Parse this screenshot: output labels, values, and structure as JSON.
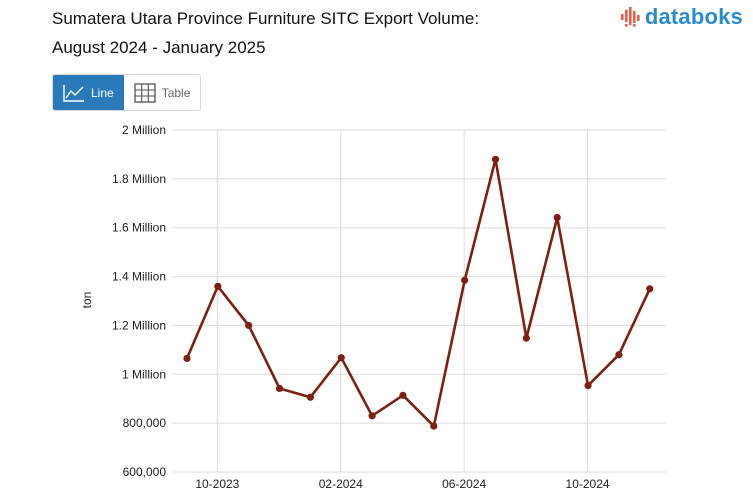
{
  "header": {
    "title_line1": "Sumatera Utara Province Furniture SITC Export Volume:",
    "title_line2": "August 2024 - January 2025"
  },
  "logo": {
    "text": "databoks",
    "icon": "databoks-logo-icon",
    "color": "#2a8bd1",
    "accent": "#e8604c"
  },
  "toggle": {
    "line_label": "Line",
    "table_label": "Table",
    "selected": "Line",
    "line_icon": "line-chart-icon",
    "table_icon": "table-grid-icon"
  },
  "chart_data": {
    "type": "line",
    "ylabel": "ton",
    "ylim": [
      600000,
      2000000
    ],
    "y_ticks": [
      {
        "value": 600000,
        "label": "600,000"
      },
      {
        "value": 800000,
        "label": "800,000"
      },
      {
        "value": 1000000,
        "label": "1 Million"
      },
      {
        "value": 1200000,
        "label": "1.2 Million"
      },
      {
        "value": 1400000,
        "label": "1.4 Million"
      },
      {
        "value": 1600000,
        "label": "1.6 Million"
      },
      {
        "value": 1800000,
        "label": "1.8 Million"
      },
      {
        "value": 2000000,
        "label": "2 Million"
      }
    ],
    "x_ticks": [
      "10-2023",
      "02-2024",
      "06-2024",
      "10-2024"
    ],
    "x_tick_months": [
      "2023-10",
      "2024-02",
      "2024-06",
      "2024-10"
    ],
    "grid": true,
    "line_color": "#7b2113",
    "series": [
      {
        "x": [
          "2023-09",
          "2023-10",
          "2023-11",
          "2023-12",
          "2024-01",
          "2024-02",
          "2024-03",
          "2024-04",
          "2024-05",
          "2024-06",
          "2024-07",
          "2024-08",
          "2024-09",
          "2024-10",
          "2024-11",
          "2024-12",
          "2025-01"
        ],
        "values": [
          1065000,
          1360000,
          1200000,
          942000,
          906000,
          1068000,
          830000,
          914000,
          788000,
          1385000,
          1880000,
          1148000,
          1642000,
          954000,
          1080000,
          1350000,
          null
        ]
      }
    ]
  }
}
